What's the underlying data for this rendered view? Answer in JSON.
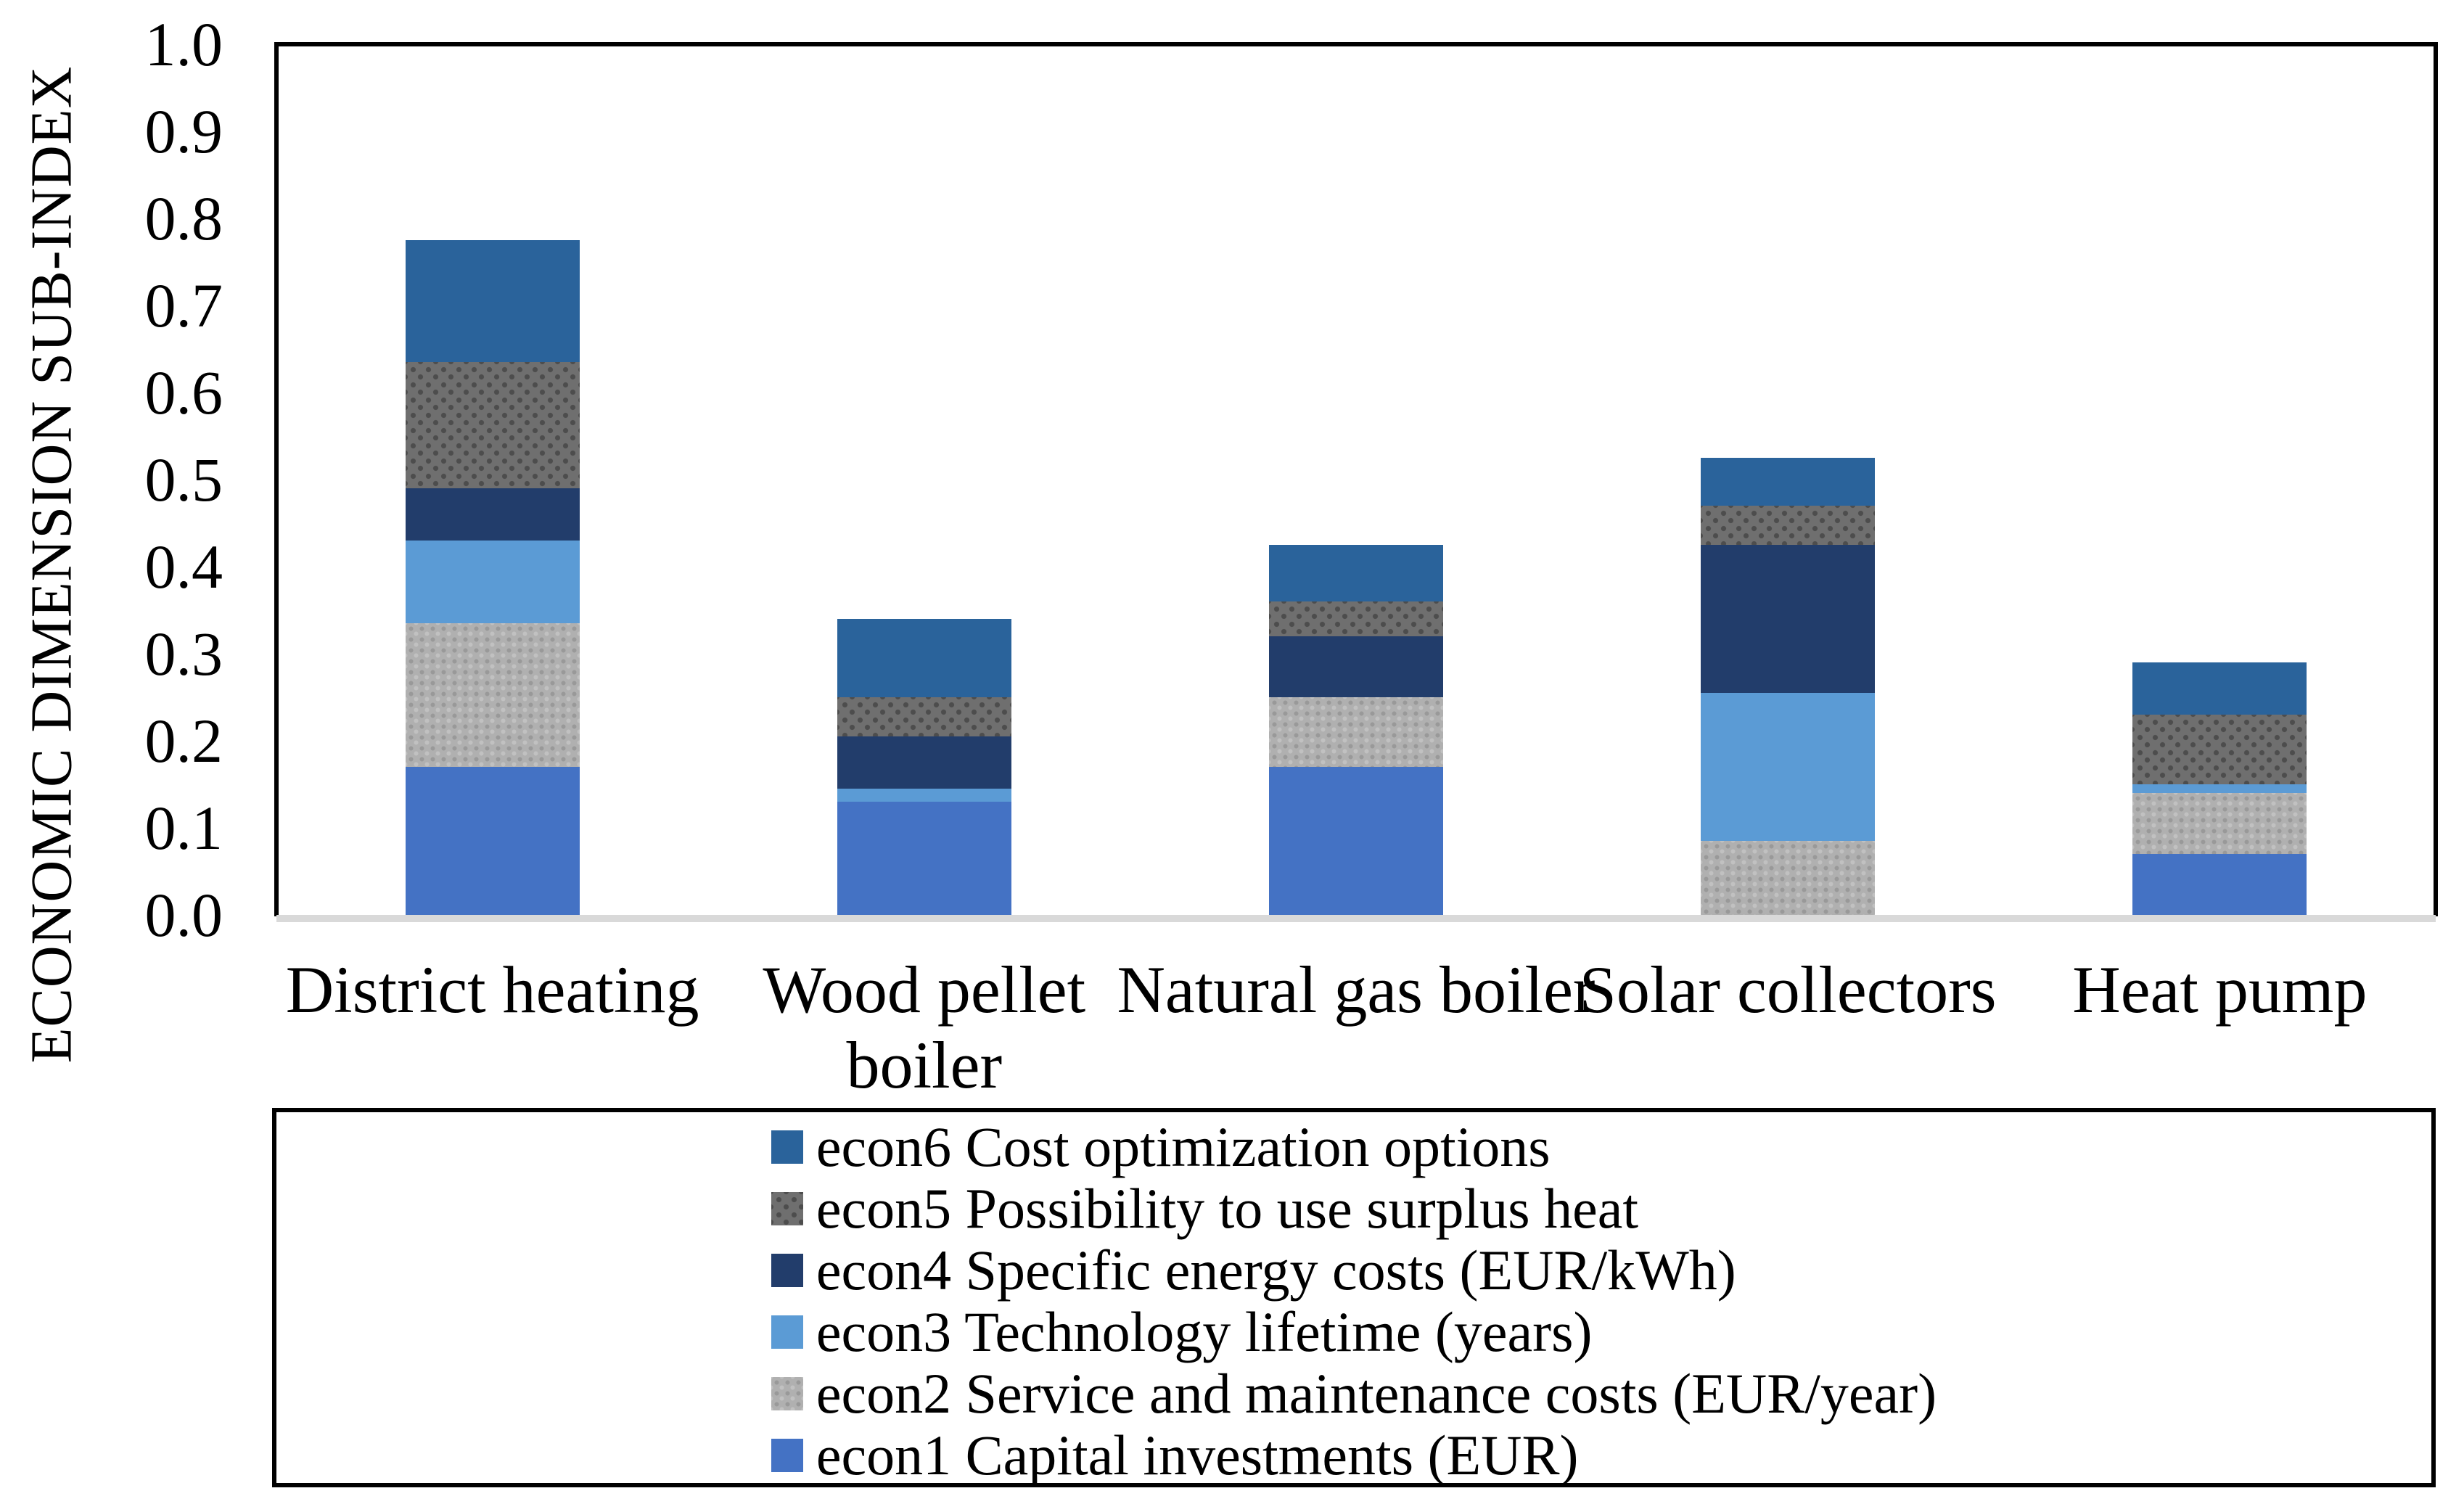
{
  "chart_data": {
    "type": "bar",
    "stacked": true,
    "title": "",
    "xlabel": "",
    "ylabel": "ECONOMIC DIMENSION SUB-INDEX",
    "ylim": [
      0.0,
      1.0
    ],
    "ytick_step": 0.1,
    "ytick_decimals": 1,
    "grid": "off",
    "legend_position": "bottom-boxed",
    "frame_color": "#000000",
    "axis_line_color": "#D9D9D9",
    "categories": [
      "District heating",
      "Wood pellet boiler",
      "Natural gas boiler",
      "Solar collectors",
      "Heat pump"
    ],
    "category_label_lines": [
      [
        "District heating"
      ],
      [
        "Wood pellet",
        "boiler"
      ],
      [
        "Natural gas boiler"
      ],
      [
        "Solar collectors"
      ],
      [
        "Heat pump"
      ]
    ],
    "series": [
      {
        "key": "econ1",
        "name": "econ1 Capital investments (EUR)",
        "color": "#4472C4",
        "pattern": "none",
        "values": [
          0.17,
          0.13,
          0.17,
          0.0,
          0.07
        ]
      },
      {
        "key": "econ2",
        "name": "econ2 Service and maintenance costs (EUR/year)",
        "color": "#B0B0B0",
        "pattern": "dots-light",
        "values": [
          0.165,
          0.0,
          0.08,
          0.085,
          0.07
        ]
      },
      {
        "key": "econ3",
        "name": "econ3 Technology lifetime (years)",
        "color": "#5B9BD5",
        "pattern": "none",
        "values": [
          0.095,
          0.015,
          0.0,
          0.17,
          0.01
        ]
      },
      {
        "key": "econ4",
        "name": "econ4 Specific energy costs (EUR/kWh)",
        "color": "#223D6B",
        "pattern": "none",
        "values": [
          0.06,
          0.06,
          0.07,
          0.17,
          0.0
        ]
      },
      {
        "key": "econ5",
        "name": "econ5 Possibility to use surplus heat",
        "color": "#6F6F6F",
        "pattern": "dots-dark",
        "values": [
          0.145,
          0.045,
          0.04,
          0.045,
          0.08
        ]
      },
      {
        "key": "econ6",
        "name": "econ6 Cost optimization options",
        "color": "#2A639B",
        "pattern": "none",
        "values": [
          0.14,
          0.09,
          0.065,
          0.055,
          0.06
        ]
      }
    ],
    "stack_totals": [
      0.775,
      0.34,
      0.425,
      0.525,
      0.29
    ],
    "legend_order_top_to_bottom": [
      "econ6",
      "econ5",
      "econ4",
      "econ3",
      "econ2",
      "econ1"
    ]
  }
}
